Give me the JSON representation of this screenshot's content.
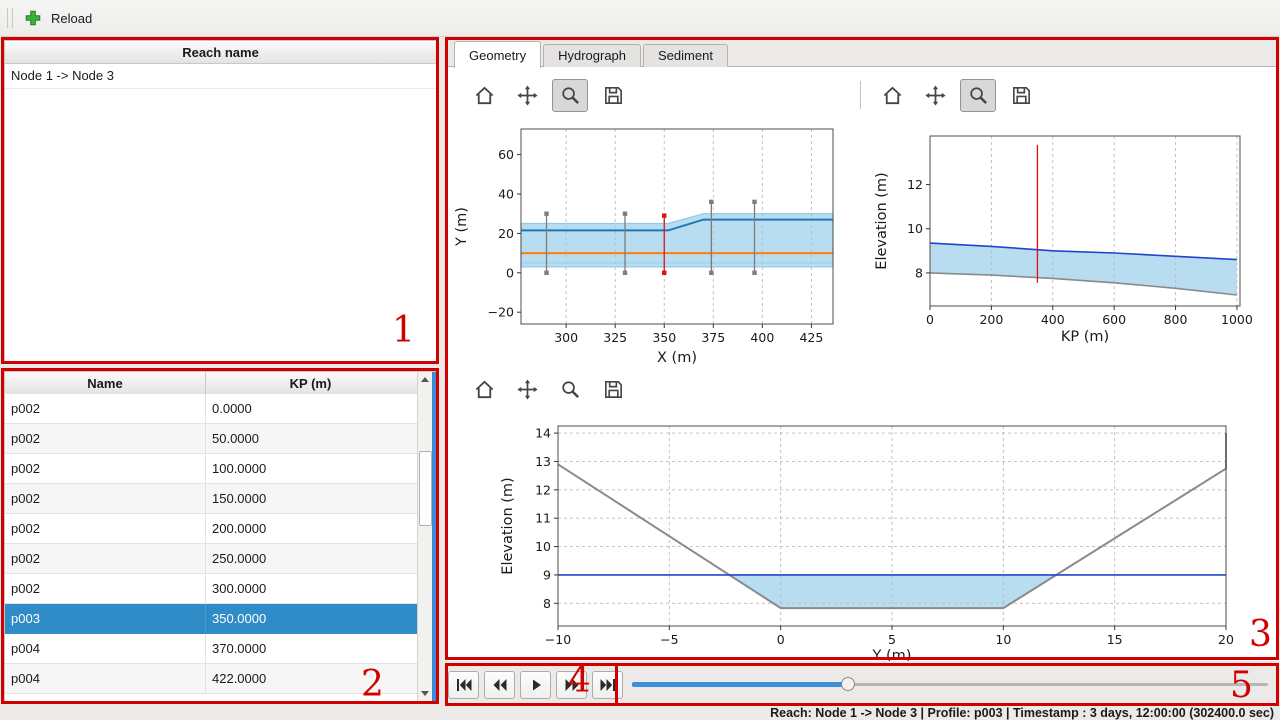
{
  "app": {
    "toolbar": {
      "reload_label": "Reload"
    },
    "status_bar": "Reach: Node 1 -> Node 3 | Profile: p003 | Timestamp : 3 days, 12:00:00 (302400.0 sec)"
  },
  "reach_list": {
    "header": "Reach name",
    "items": [
      "Node 1 -> Node 3"
    ]
  },
  "profile_table": {
    "columns": [
      "Name",
      "KP (m)"
    ],
    "rows": [
      [
        "p002",
        "0.0000"
      ],
      [
        "p002",
        "50.0000"
      ],
      [
        "p002",
        "100.0000"
      ],
      [
        "p002",
        "150.0000"
      ],
      [
        "p002",
        "200.0000"
      ],
      [
        "p002",
        "250.0000"
      ],
      [
        "p002",
        "300.0000"
      ],
      [
        "p003",
        "350.0000"
      ],
      [
        "p004",
        "370.0000"
      ],
      [
        "p004",
        "422.0000"
      ]
    ],
    "selected_row": 7
  },
  "tabs": {
    "items": [
      "Geometry",
      "Hydrograph",
      "Sediment"
    ],
    "active": "Geometry"
  },
  "chart_toolbars": {
    "icons": [
      "home",
      "pan",
      "zoom",
      "save"
    ],
    "top_left_zoom_pressed": true,
    "top_right_zoom_pressed": true,
    "bottom_zoom_pressed": false
  },
  "playback": {
    "buttons": [
      "skip-to-start",
      "rewind",
      "play",
      "fast-forward",
      "skip-to-end"
    ]
  },
  "slider": {
    "fraction": 0.34
  },
  "annotations": {
    "numbers": [
      "1",
      "2",
      "3",
      "4",
      "5"
    ]
  },
  "colors": {
    "selection": "#308cc6",
    "annotation_red": "#d10000",
    "water_fill": "#b8dcf0",
    "water_line": "#2244cc",
    "bed_line": "#8a8a8a",
    "marker_red": "#e01010",
    "bank_line": "#1f78b4",
    "centerline_orange": "#ff7f0e",
    "slider_fill": "#3a8edb"
  },
  "chart_data": [
    {
      "id": "plan",
      "type": "line",
      "title": "",
      "xlabel": "X (m)",
      "ylabel": "Y (m)",
      "xlim": [
        277,
        436
      ],
      "ylim": [
        -26,
        73
      ],
      "xticks": [
        300,
        325,
        350,
        375,
        400,
        425
      ],
      "yticks": [
        -20,
        0,
        20,
        40,
        60
      ],
      "grid": "x",
      "series": [
        {
          "name": "channel-extent-band",
          "type": "band",
          "x": [
            277,
            352,
            370,
            436
          ],
          "top": [
            25,
            25,
            30,
            30
          ],
          "bottom": [
            3,
            3,
            3,
            3
          ],
          "fill": "#b8dcf0",
          "edge": "#8fcbe8"
        },
        {
          "name": "bank-line",
          "type": "line",
          "x": [
            277,
            352,
            370,
            436
          ],
          "y": [
            21.5,
            21.5,
            27,
            27
          ],
          "color": "#1f78b4",
          "width": 2
        },
        {
          "name": "centerline",
          "type": "line",
          "x": [
            277,
            436
          ],
          "y": [
            10,
            10
          ],
          "color": "#ff7f0e",
          "width": 2
        },
        {
          "name": "lower-bank-line",
          "type": "line",
          "x": [
            277,
            436
          ],
          "y": [
            5,
            5
          ],
          "color": "#9fd4ec",
          "width": 1.5
        },
        {
          "name": "profile-location-markers",
          "type": "vlines",
          "color": "#7d7d7d",
          "marker": true,
          "items": [
            {
              "x": 290,
              "y1": 0,
              "y2": 30
            },
            {
              "x": 330,
              "y1": 0,
              "y2": 30
            },
            {
              "x": 374,
              "y1": 0,
              "y2": 36
            },
            {
              "x": 396,
              "y1": 0,
              "y2": 36
            }
          ]
        },
        {
          "name": "selected-profile-marker",
          "type": "vlines",
          "color": "#e01010",
          "marker": true,
          "items": [
            {
              "x": 350,
              "y1": 0,
              "y2": 29
            }
          ]
        }
      ]
    },
    {
      "id": "profile",
      "type": "line",
      "title": "",
      "xlabel": "KP (m)",
      "ylabel": "Elevation (m)",
      "xlim": [
        0,
        1010
      ],
      "ylim": [
        6.5,
        14.2
      ],
      "xticks": [
        0,
        200,
        400,
        600,
        800,
        1000
      ],
      "yticks": [
        8,
        10,
        12
      ],
      "grid": "x",
      "series": [
        {
          "name": "water-depth-band",
          "type": "band",
          "x": [
            0,
            200,
            400,
            600,
            800,
            1000
          ],
          "top": [
            9.35,
            9.2,
            9.0,
            8.9,
            8.75,
            8.6
          ],
          "bottom": [
            8.0,
            7.9,
            7.75,
            7.55,
            7.3,
            7.0
          ],
          "fill": "#b8dcf0"
        },
        {
          "name": "water-surface-line",
          "type": "line",
          "x": [
            0,
            200,
            400,
            600,
            800,
            1000
          ],
          "y": [
            9.35,
            9.2,
            9.0,
            8.9,
            8.75,
            8.6
          ],
          "color": "#2244cc",
          "width": 1.6
        },
        {
          "name": "bed-line",
          "type": "line",
          "x": [
            0,
            200,
            400,
            600,
            800,
            1000
          ],
          "y": [
            8.0,
            7.9,
            7.75,
            7.55,
            7.3,
            7.0
          ],
          "color": "#8a8a8a",
          "width": 1.6
        },
        {
          "name": "selected-profile-marker",
          "type": "vlines",
          "color": "#e01010",
          "marker": false,
          "items": [
            {
              "x": 350,
              "y1": 7.55,
              "y2": 13.8
            }
          ]
        }
      ]
    },
    {
      "id": "cross_section",
      "type": "line",
      "title": "",
      "xlabel": "Y (m)",
      "ylabel": "Elevation (m)",
      "xlim": [
        -10,
        20
      ],
      "ylim": [
        7.2,
        14.25
      ],
      "xticks": [
        -10,
        -5,
        0,
        5,
        10,
        15,
        20
      ],
      "yticks": [
        8,
        9,
        10,
        11,
        12,
        13,
        14
      ],
      "grid": "xy",
      "series": [
        {
          "name": "water-area",
          "type": "polygon",
          "points": [
            [
              -2.31,
              9
            ],
            [
              0,
              7.83
            ],
            [
              10,
              7.83
            ],
            [
              12.38,
              9
            ]
          ],
          "fill": "#b8dcf0"
        },
        {
          "name": "bed-line",
          "type": "line",
          "x": [
            -10,
            0,
            10,
            20,
            20
          ],
          "y": [
            12.9,
            7.83,
            7.83,
            12.75,
            14.0
          ],
          "color": "#8a8a8a",
          "width": 2
        },
        {
          "name": "water-level-line",
          "type": "line",
          "x": [
            -10,
            20
          ],
          "y": [
            9,
            9
          ],
          "color": "#2244cc",
          "width": 1.6
        }
      ]
    }
  ]
}
